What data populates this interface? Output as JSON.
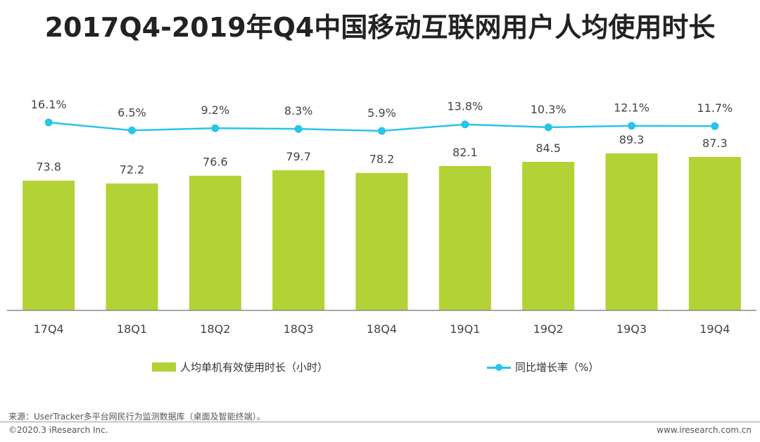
{
  "title": "2017Q4-2019年Q4中国移动互联网用户人均使用时长",
  "chart_data": {
    "type": "bar",
    "categories": [
      "17Q4",
      "18Q1",
      "18Q2",
      "18Q3",
      "18Q4",
      "19Q1",
      "19Q2",
      "19Q3",
      "19Q4"
    ],
    "series": [
      {
        "name": "人均单机有效使用时长（小时）",
        "type": "bar",
        "values": [
          73.8,
          72.2,
          76.6,
          79.7,
          78.2,
          82.1,
          84.5,
          89.3,
          87.3
        ],
        "labels": [
          "73.8",
          "72.2",
          "76.6",
          "79.7",
          "78.2",
          "82.1",
          "84.5",
          "89.3",
          "87.3"
        ]
      },
      {
        "name": "同比增长率（%）",
        "type": "line",
        "values": [
          16.1,
          6.5,
          9.2,
          8.3,
          5.9,
          13.8,
          10.3,
          12.1,
          11.7
        ],
        "labels": [
          "16.1%",
          "6.5%",
          "9.2%",
          "8.3%",
          "5.9%",
          "13.8%",
          "10.3%",
          "12.1%",
          "11.7%"
        ]
      }
    ],
    "bar_color": "#b2d235",
    "line_color": "#29c4ea",
    "legend_position": "bottom"
  },
  "source": "来源：UserTracker多平台网民行为监测数据库（桌面及智能终端）。",
  "copyright": "©2020.3 iResearch Inc.",
  "website": "www.iresearch.com.cn"
}
